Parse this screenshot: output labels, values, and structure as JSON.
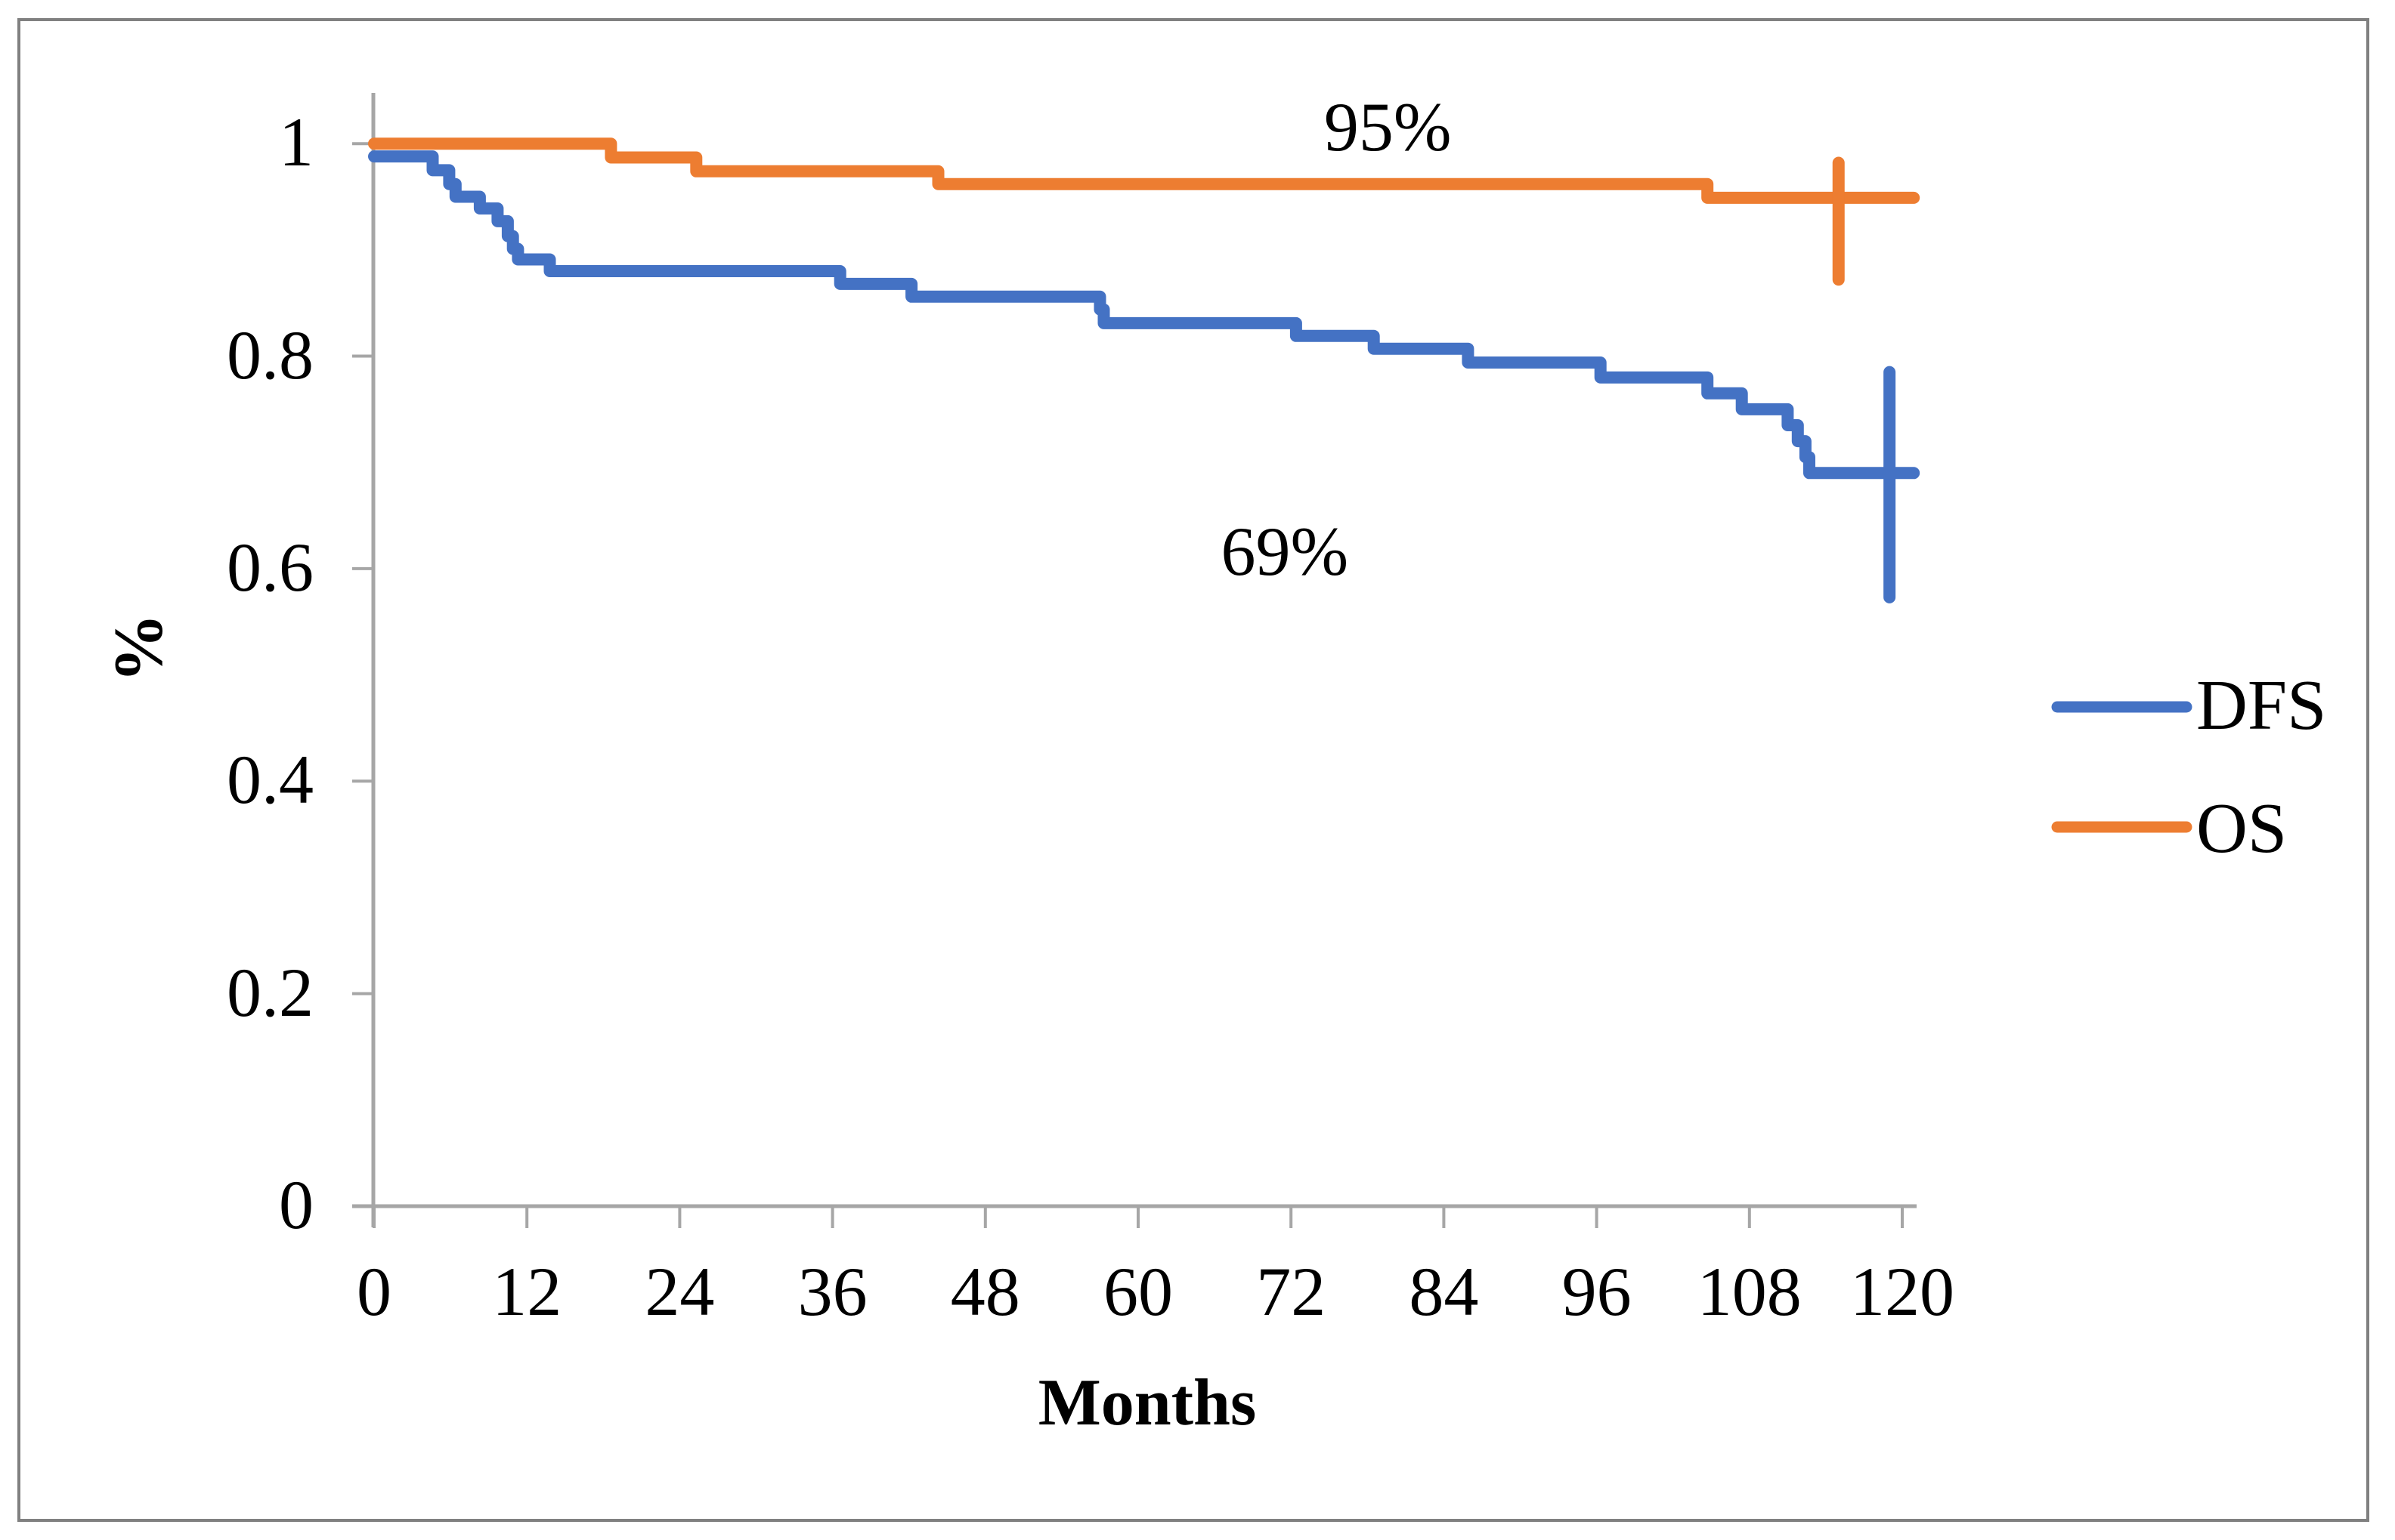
{
  "figure": {
    "background": "#ffffff",
    "frame_color": "#808080",
    "axis_color": "#A6A6A6",
    "text_color": "#000000"
  },
  "chart_data": {
    "type": "line",
    "subtype": "kaplan_meier_step",
    "title": "",
    "xlabel": "Months",
    "ylabel": "%",
    "xlim": [
      0,
      120
    ],
    "ylim": [
      0,
      1
    ],
    "grid": false,
    "legend_position": "right",
    "x_ticks": [
      {
        "value": 0,
        "label": "0"
      },
      {
        "value": 12,
        "label": "12"
      },
      {
        "value": 24,
        "label": "24"
      },
      {
        "value": 36,
        "label": "36"
      },
      {
        "value": 48,
        "label": "48"
      },
      {
        "value": 60,
        "label": "60"
      },
      {
        "value": 72,
        "label": "72"
      },
      {
        "value": 84,
        "label": "84"
      },
      {
        "value": 96,
        "label": "96"
      },
      {
        "value": 108,
        "label": "108"
      },
      {
        "value": 120,
        "label": "120"
      }
    ],
    "y_ticks": [
      {
        "value": 1,
        "label": "1"
      },
      {
        "value": 0.8,
        "label": "0.8"
      },
      {
        "value": 0.6,
        "label": "0.6"
      },
      {
        "value": 0.4,
        "label": "0.4"
      },
      {
        "value": 0.2,
        "label": "0.2"
      },
      {
        "value": 0,
        "label": "0"
      }
    ],
    "series": [
      {
        "name": "DFS",
        "color": "#4472C4",
        "final_value_label": "69%",
        "steps": [
          [
            0,
            0.988
          ],
          [
            4.6,
            0.975
          ],
          [
            5.9,
            0.962
          ],
          [
            6.4,
            0.95
          ],
          [
            8.3,
            0.939
          ],
          [
            9.7,
            0.927
          ],
          [
            10.5,
            0.913
          ],
          [
            10.9,
            0.901
          ],
          [
            11.3,
            0.891
          ],
          [
            13.8,
            0.88
          ],
          [
            36.6,
            0.868
          ],
          [
            42.2,
            0.856
          ],
          [
            57.0,
            0.844
          ],
          [
            57.3,
            0.831
          ],
          [
            72.4,
            0.819
          ],
          [
            78.5,
            0.807
          ],
          [
            85.9,
            0.794
          ],
          [
            96.3,
            0.78
          ],
          [
            104.7,
            0.765
          ],
          [
            107.4,
            0.75
          ],
          [
            111.0,
            0.735
          ],
          [
            111.8,
            0.72
          ],
          [
            112.4,
            0.705
          ],
          [
            112.7,
            0.69
          ],
          [
            120.9,
            0.69
          ]
        ],
        "error_bar": {
          "month": 119.0,
          "low": 0.573,
          "high": 0.785
        }
      },
      {
        "name": "OS",
        "color": "#ED7D31",
        "final_value_label": "95%",
        "steps": [
          [
            0,
            1.0
          ],
          [
            18.6,
            0.987
          ],
          [
            25.3,
            0.974
          ],
          [
            44.3,
            0.962
          ],
          [
            104.7,
            0.949
          ],
          [
            120.9,
            0.949
          ]
        ],
        "error_bar": {
          "month": 115.0,
          "low": 0.872,
          "high": 0.982
        }
      }
    ],
    "annotations": [
      {
        "text": "95%",
        "month": 79.6,
        "value": 1.016
      },
      {
        "text": "69%",
        "month": 71.5,
        "value": 0.616
      }
    ]
  },
  "legend": {
    "items": [
      {
        "label": "DFS",
        "color": "#4472C4"
      },
      {
        "label": "OS",
        "color": "#ED7D31"
      }
    ]
  }
}
